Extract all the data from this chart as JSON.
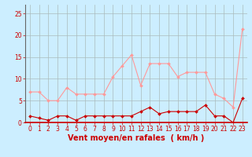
{
  "hours": [
    0,
    1,
    2,
    3,
    4,
    5,
    6,
    7,
    8,
    9,
    10,
    11,
    12,
    13,
    14,
    15,
    16,
    17,
    18,
    19,
    20,
    21,
    22,
    23
  ],
  "avg_wind": [
    1.5,
    1.0,
    0.5,
    1.5,
    1.5,
    0.5,
    1.5,
    1.5,
    1.5,
    1.5,
    1.5,
    1.5,
    2.5,
    3.5,
    2.0,
    2.5,
    2.5,
    2.5,
    2.5,
    4.0,
    1.5,
    1.5,
    0.0,
    5.5
  ],
  "gusts": [
    7.0,
    7.0,
    5.0,
    5.0,
    8.0,
    6.5,
    6.5,
    6.5,
    6.5,
    10.5,
    13.0,
    15.5,
    8.5,
    13.5,
    13.5,
    13.5,
    10.5,
    11.5,
    11.5,
    11.5,
    6.5,
    5.5,
    3.5,
    21.5
  ],
  "ylim": [
    0,
    27
  ],
  "yticks": [
    0,
    5,
    10,
    15,
    20,
    25
  ],
  "bg_color": "#cceeff",
  "grid_color": "#aabbbb",
  "avg_color": "#cc0000",
  "gust_color": "#ff9999",
  "xlabel": "Vent moyen/en rafales  ( km/h )",
  "xlabel_color": "#cc0000",
  "tick_color": "#cc0000",
  "tick_fontsize": 5.5,
  "xlabel_fontsize": 7.0
}
